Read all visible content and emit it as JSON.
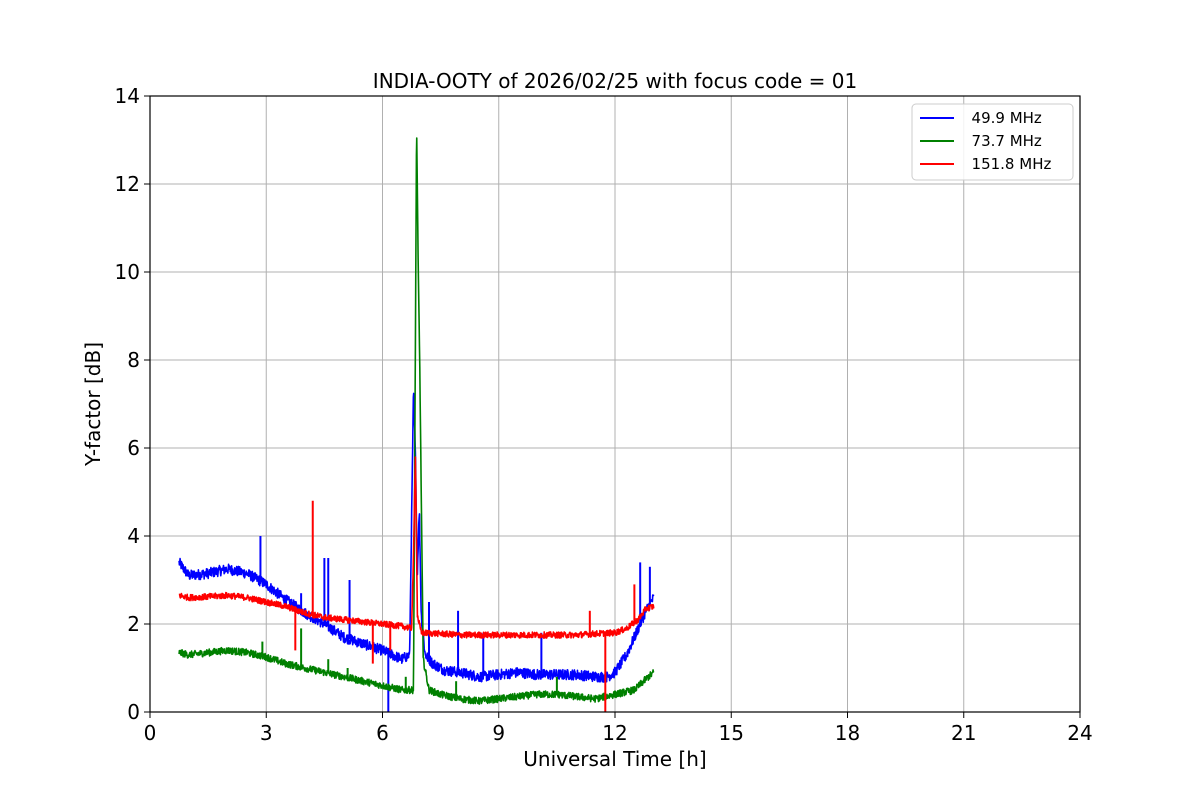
{
  "chart_data": {
    "type": "line",
    "title": "INDIA-OOTY of 2026/02/25 with focus code = 01",
    "xlabel": "Universal Time [h]",
    "ylabel": "Y-factor [dB]",
    "xlim": [
      0,
      24
    ],
    "ylim": [
      0,
      14
    ],
    "xticks": [
      0,
      3,
      6,
      9,
      12,
      15,
      18,
      21,
      24
    ],
    "yticks": [
      0,
      2,
      4,
      6,
      8,
      10,
      12,
      14
    ],
    "grid": true,
    "legend_position": "top-right",
    "series": [
      {
        "name": "  49.9 MHz",
        "color": "#0000ff",
        "noise": 0.12,
        "x": [
          0.75,
          1.0,
          1.5,
          2.0,
          2.5,
          3.0,
          3.5,
          4.0,
          4.5,
          5.0,
          5.5,
          6.0,
          6.5,
          6.7,
          6.8,
          6.85,
          6.9,
          6.95,
          7.0,
          7.1,
          7.3,
          7.6,
          8.0,
          8.5,
          9.0,
          9.5,
          10.0,
          10.5,
          11.0,
          11.5,
          11.8,
          12.0,
          12.3,
          12.6,
          12.8,
          13.0
        ],
        "y": [
          3.4,
          3.1,
          3.15,
          3.25,
          3.15,
          2.9,
          2.55,
          2.25,
          2.0,
          1.7,
          1.55,
          1.4,
          1.2,
          1.3,
          7.3,
          5.8,
          3.2,
          4.6,
          2.2,
          1.3,
          1.1,
          0.95,
          0.9,
          0.8,
          0.85,
          0.9,
          0.85,
          0.85,
          0.85,
          0.8,
          0.8,
          0.9,
          1.3,
          1.9,
          2.3,
          2.6
        ],
        "spikes": [
          [
            2.85,
            4.0
          ],
          [
            3.9,
            2.7
          ],
          [
            4.5,
            3.5
          ],
          [
            4.6,
            3.5
          ],
          [
            5.15,
            3.0
          ],
          [
            6.15,
            0.0
          ],
          [
            7.2,
            2.5
          ],
          [
            7.95,
            2.3
          ],
          [
            8.6,
            1.8
          ],
          [
            10.1,
            1.8
          ],
          [
            12.65,
            3.4
          ],
          [
            12.9,
            3.3
          ]
        ]
      },
      {
        "name": "  73.7 MHz",
        "color": "#008000",
        "noise": 0.08,
        "x": [
          0.75,
          1.0,
          1.5,
          2.0,
          2.5,
          3.0,
          3.5,
          4.0,
          4.5,
          5.0,
          5.5,
          6.0,
          6.5,
          6.8,
          6.88,
          6.92,
          6.96,
          7.05,
          7.2,
          7.5,
          8.0,
          8.5,
          9.0,
          9.5,
          10.0,
          10.5,
          11.0,
          11.5,
          12.0,
          12.5,
          12.8,
          13.0
        ],
        "y": [
          1.35,
          1.3,
          1.35,
          1.4,
          1.35,
          1.25,
          1.1,
          1.0,
          0.9,
          0.8,
          0.7,
          0.6,
          0.5,
          0.5,
          13.4,
          10.2,
          8.0,
          1.2,
          0.5,
          0.4,
          0.3,
          0.25,
          0.3,
          0.35,
          0.4,
          0.4,
          0.35,
          0.3,
          0.4,
          0.5,
          0.75,
          0.9
        ],
        "spikes": [
          [
            2.9,
            1.6
          ],
          [
            3.9,
            1.9
          ],
          [
            4.6,
            1.2
          ],
          [
            5.1,
            1.0
          ],
          [
            6.6,
            0.8
          ],
          [
            7.9,
            0.7
          ],
          [
            10.5,
            0.8
          ]
        ]
      },
      {
        "name": "  151.8 MHz",
        "color": "#ff0000",
        "noise": 0.07,
        "x": [
          0.75,
          1.0,
          1.5,
          2.0,
          2.5,
          3.0,
          3.5,
          4.0,
          4.5,
          5.0,
          5.5,
          6.0,
          6.5,
          6.75,
          6.8,
          6.85,
          6.9,
          7.0,
          7.5,
          8.0,
          8.5,
          9.0,
          9.5,
          10.0,
          10.5,
          11.0,
          11.5,
          12.0,
          12.3,
          12.6,
          12.8,
          13.0
        ],
        "y": [
          2.65,
          2.6,
          2.62,
          2.65,
          2.6,
          2.5,
          2.4,
          2.25,
          2.15,
          2.1,
          2.05,
          2.0,
          1.95,
          1.9,
          3.5,
          5.9,
          2.2,
          1.8,
          1.78,
          1.75,
          1.75,
          1.75,
          1.75,
          1.75,
          1.75,
          1.75,
          1.78,
          1.8,
          1.9,
          2.1,
          2.35,
          2.4
        ],
        "spikes": [
          [
            3.75,
            1.4
          ],
          [
            4.2,
            4.8
          ],
          [
            5.75,
            1.1
          ],
          [
            6.2,
            1.4
          ],
          [
            11.35,
            2.3
          ],
          [
            11.75,
            0.0
          ],
          [
            12.5,
            2.9
          ]
        ]
      }
    ]
  }
}
